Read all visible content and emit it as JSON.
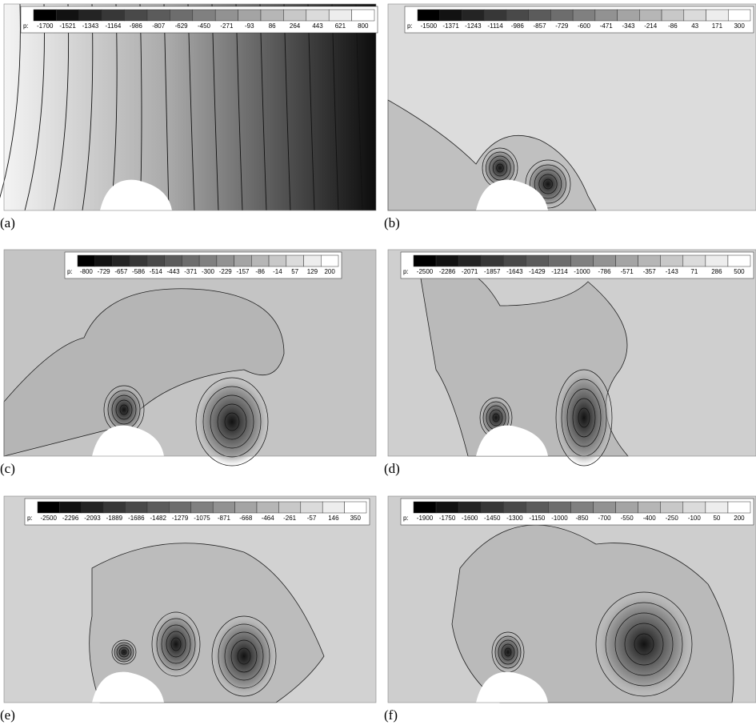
{
  "panels": [
    {
      "label": "(a)",
      "legend_title": "p:",
      "levels": [
        -1700,
        -1521,
        -1343,
        -1164,
        -986,
        -807,
        -629,
        -450,
        -271,
        -93,
        86,
        264,
        443,
        621,
        800
      ]
    },
    {
      "label": "(b)",
      "legend_title": "p:",
      "levels": [
        -1500,
        -1371,
        -1243,
        -1114,
        -986,
        -857,
        -729,
        -600,
        -471,
        -343,
        -214,
        -86,
        43,
        171,
        300
      ]
    },
    {
      "label": "(c)",
      "legend_title": "p:",
      "levels": [
        -800,
        -729,
        -657,
        -586,
        -514,
        -443,
        -371,
        -300,
        -229,
        -157,
        -86,
        -14,
        57,
        129,
        200
      ]
    },
    {
      "label": "(d)",
      "legend_title": "p:",
      "levels": [
        -2500,
        -2286,
        -2071,
        -1857,
        -1643,
        -1429,
        -1214,
        -1000,
        -786,
        -571,
        -357,
        -143,
        71,
        286,
        500
      ]
    },
    {
      "label": "(e)",
      "legend_title": "p:",
      "levels": [
        -2500,
        -2296,
        -2093,
        -1889,
        -1686,
        -1482,
        -1279,
        -1075,
        -871,
        -668,
        -464,
        -261,
        -57,
        146,
        350
      ]
    },
    {
      "label": "(f)",
      "legend_title": "p:",
      "levels": [
        -1900,
        -1750,
        -1600,
        -1450,
        -1300,
        -1150,
        -1000,
        -850,
        -700,
        -550,
        -400,
        -250,
        -100,
        50,
        200
      ]
    }
  ]
}
